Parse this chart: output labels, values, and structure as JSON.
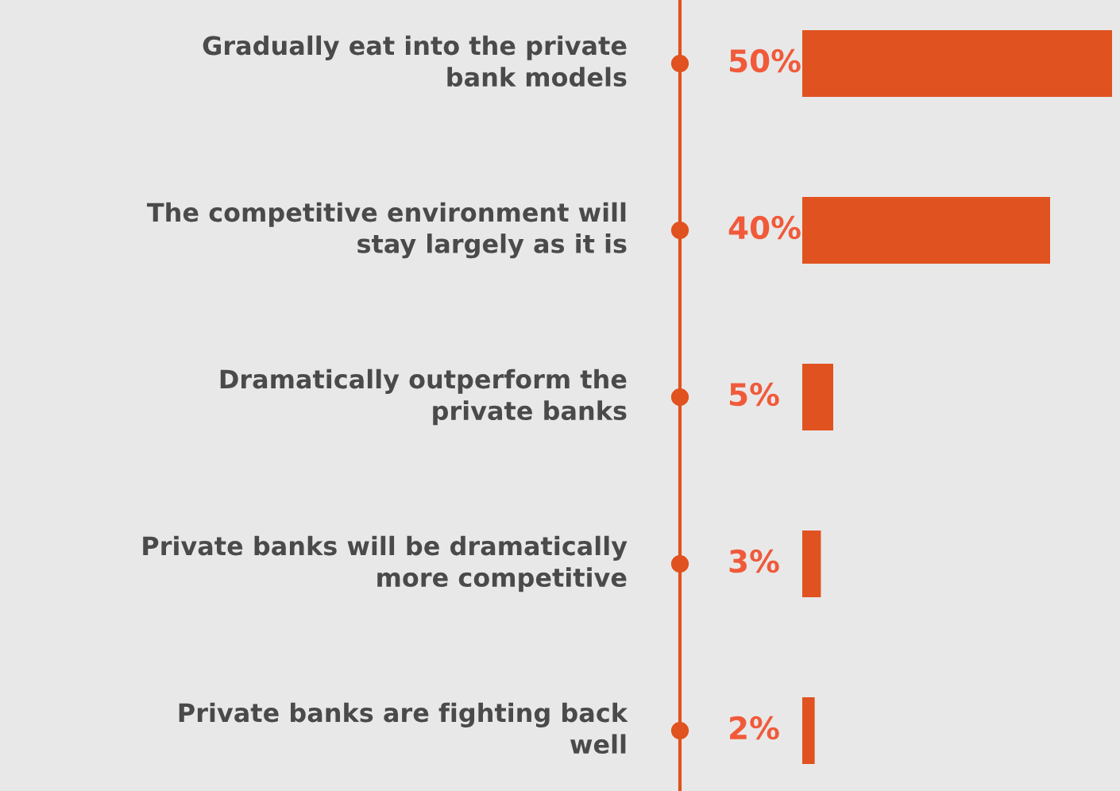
{
  "chart_data": {
    "type": "bar",
    "orientation": "horizontal",
    "categories": [
      "Gradually eat into the private\nbank models",
      "The competitive environment will\nstay largely as it is",
      "Dramatically outperform the\nprivate banks",
      "Private banks will be dramatically\nmore competitive",
      "Private banks are fighting back\nwell"
    ],
    "values": [
      50,
      40,
      5,
      3,
      2
    ],
    "value_labels": [
      "50%",
      "40%",
      "5%",
      "3%",
      "2%"
    ],
    "color": "#e0521f",
    "grid": false,
    "legend": false
  }
}
